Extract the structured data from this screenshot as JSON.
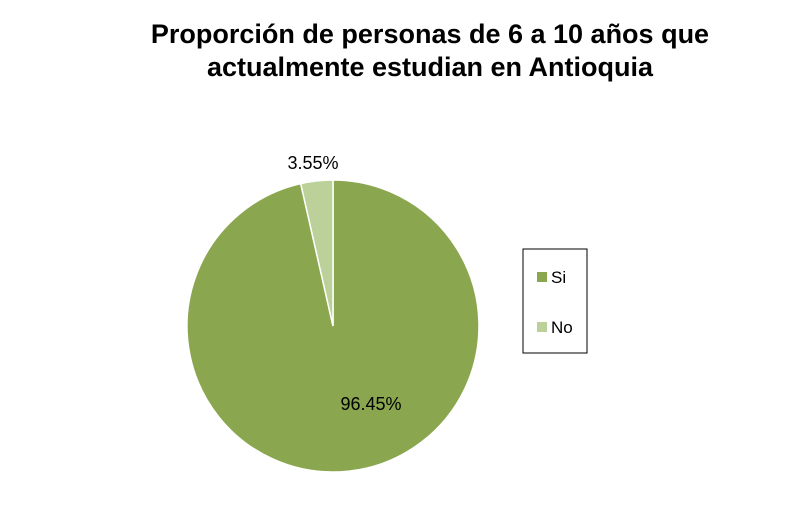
{
  "chart_data": {
    "type": "pie",
    "title_lines": [
      "Proporción de personas de 6 a 10 años que",
      "actualmente estudian en Antioquia"
    ],
    "categories": [
      "Si",
      "No"
    ],
    "values": [
      96.45,
      3.55
    ],
    "labels": [
      "96.45%",
      "3.55%"
    ],
    "colors": [
      "#8aa64f",
      "#bcd19a"
    ],
    "legend": {
      "placement": "right",
      "entries": [
        "Si",
        "No"
      ]
    }
  }
}
